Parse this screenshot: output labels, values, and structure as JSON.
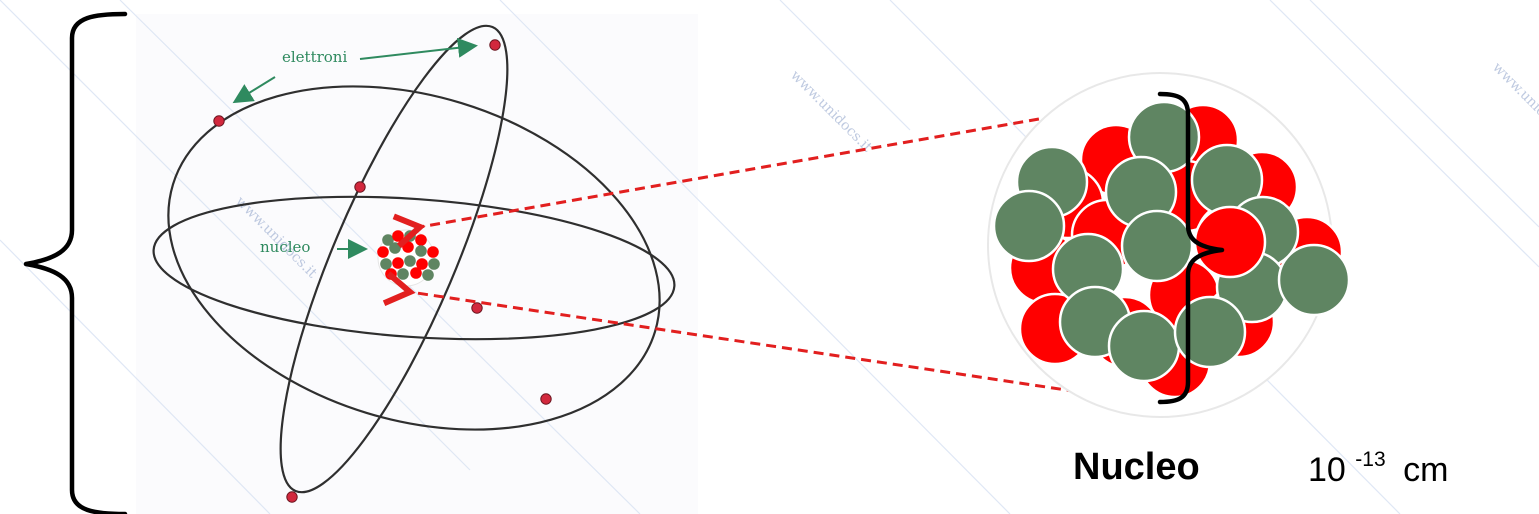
{
  "labels": {
    "electrons": "elettroni",
    "nucleus_small": "nucleo",
    "nucleus_title": "Nucleo",
    "scale_base": "10",
    "scale_exponent": "-13",
    "scale_unit": "cm"
  },
  "watermark": {
    "text": "www.unidocs.it"
  },
  "colors": {
    "proton": "#ff0000",
    "neutron": "#5f8562",
    "orbit_stroke": "#2f2f2f",
    "label_green": "#2f8a5f",
    "dashed_red": "#e21f1f"
  },
  "icons": {
    "left_brace": "left-curly-brace-icon",
    "right_brace": "right-curly-brace-icon",
    "arrow": "arrow-icon"
  }
}
